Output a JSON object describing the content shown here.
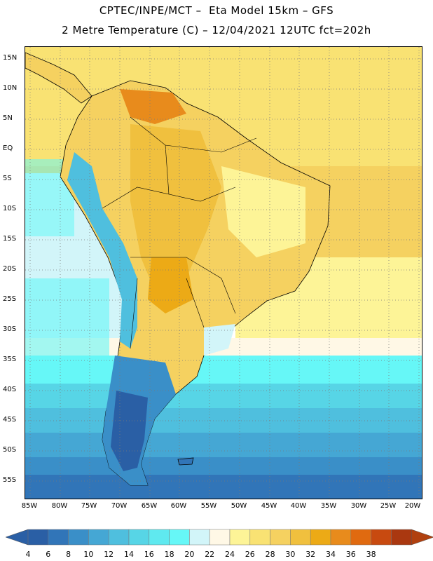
{
  "header": {
    "line1": "CPTEC/INPE/MCT –  Eta Model 15km – GFS",
    "line2": "2 Metre Temperature (C) – 12/04/2021 12UTC fct=202h"
  },
  "map": {
    "lat_labels": [
      "15N",
      "10N",
      "5N",
      "EQ",
      "5S",
      "10S",
      "15S",
      "20S",
      "25S",
      "30S",
      "35S",
      "40S",
      "45S",
      "50S",
      "55S"
    ],
    "lon_labels": [
      "85W",
      "80W",
      "75W",
      "70W",
      "65W",
      "60W",
      "55W",
      "50W",
      "45W",
      "40W",
      "35W",
      "30W",
      "25W",
      "20W"
    ],
    "field": "2 Metre Temperature",
    "units": "C"
  },
  "legend": {
    "values": [
      "4",
      "6",
      "8",
      "10",
      "12",
      "14",
      "16",
      "18",
      "20",
      "22",
      "24",
      "26",
      "28",
      "30",
      "32",
      "34",
      "36",
      "38"
    ],
    "colors": [
      "#2a5fa5",
      "#3175b8",
      "#3a8fc8",
      "#45a7d4",
      "#4fbfde",
      "#57d5e6",
      "#5fe9ef",
      "#66f7f7",
      "#d2f5f9",
      "#fff8e6",
      "#fdf497",
      "#f9e273",
      "#f5d160",
      "#f0c03e",
      "#ecaa16",
      "#e88b1c",
      "#e06a10",
      "#c84a10",
      "#aa3810"
    ],
    "low_arrow_color": "#2a5fa5",
    "high_arrow_color": "#b0400f"
  }
}
